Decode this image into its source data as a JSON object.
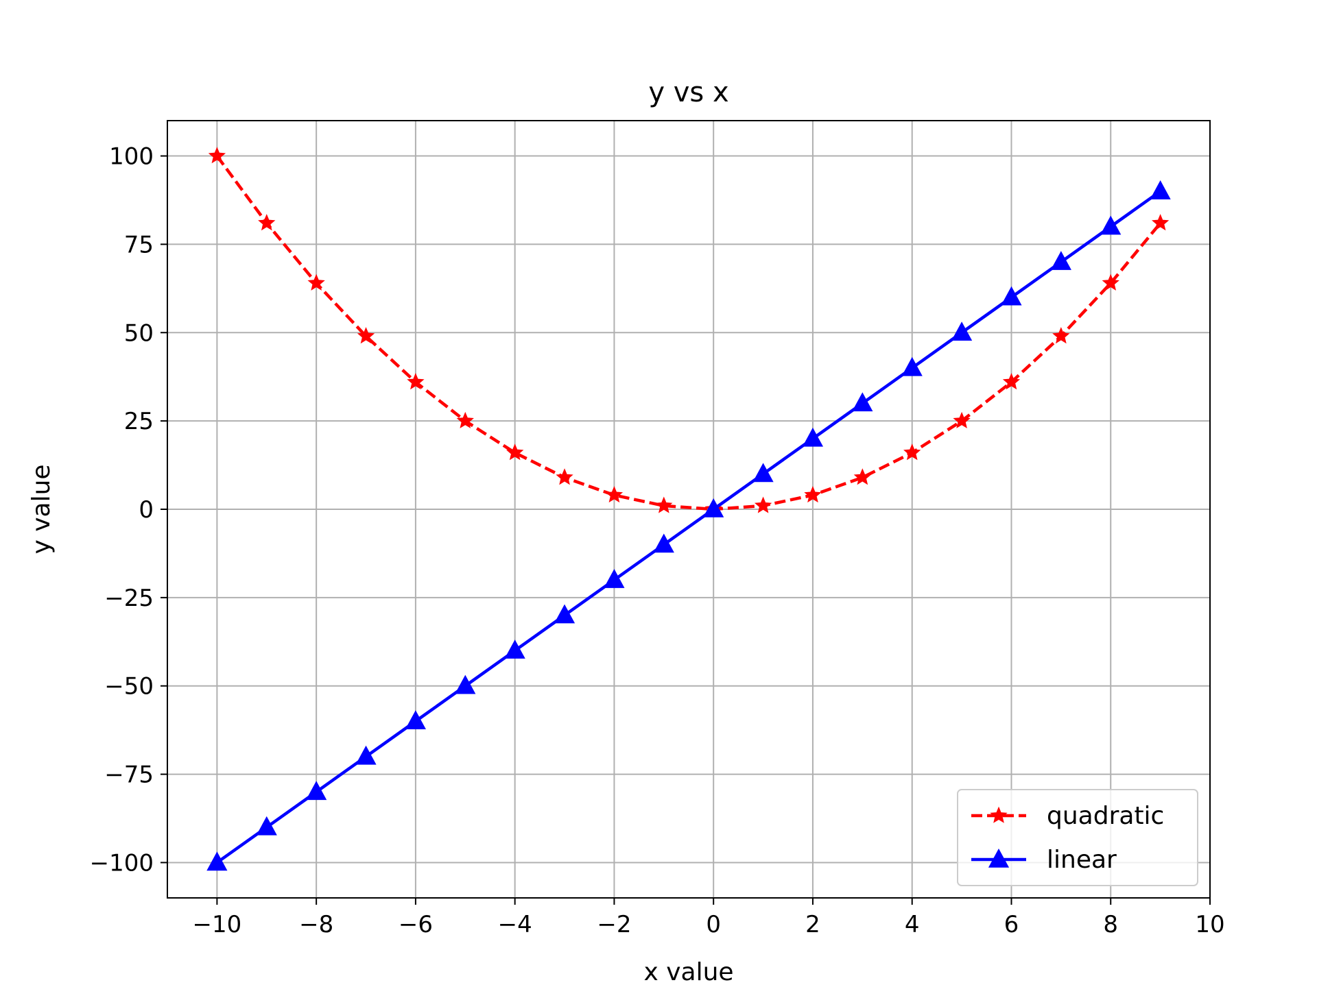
{
  "chart_data": {
    "type": "line",
    "title": "y vs x",
    "xlabel": "x value",
    "ylabel": "y value",
    "xlim": [
      -11,
      10
    ],
    "ylim": [
      -110,
      110
    ],
    "xticks": [
      -10,
      -8,
      -6,
      -4,
      -2,
      0,
      2,
      4,
      6,
      8,
      10
    ],
    "xtick_labels": [
      "−10",
      "−8",
      "−6",
      "−4",
      "−2",
      "0",
      "2",
      "4",
      "6",
      "8",
      "10"
    ],
    "yticks": [
      -100,
      -75,
      -50,
      -25,
      0,
      25,
      50,
      75,
      100
    ],
    "ytick_labels": [
      "−100",
      "−75",
      "−50",
      "−25",
      "0",
      "25",
      "50",
      "75",
      "100"
    ],
    "grid": true,
    "legend_position": "lower-right",
    "x": [
      -10,
      -9,
      -8,
      -7,
      -6,
      -5,
      -4,
      -3,
      -2,
      -1,
      0,
      1,
      2,
      3,
      4,
      5,
      6,
      7,
      8,
      9
    ],
    "series": [
      {
        "name": "quadratic",
        "color": "#ff0000",
        "line_style": "dashed",
        "marker": "star",
        "values": [
          100,
          81,
          64,
          49,
          36,
          25,
          16,
          9,
          4,
          1,
          0,
          1,
          4,
          9,
          16,
          25,
          36,
          49,
          64,
          81
        ]
      },
      {
        "name": "linear",
        "color": "#0000ff",
        "line_style": "solid",
        "marker": "triangle-up",
        "values": [
          -100,
          -90,
          -80,
          -70,
          -60,
          -50,
          -40,
          -30,
          -20,
          -10,
          0,
          10,
          20,
          30,
          40,
          50,
          60,
          70,
          80,
          90
        ]
      }
    ]
  }
}
